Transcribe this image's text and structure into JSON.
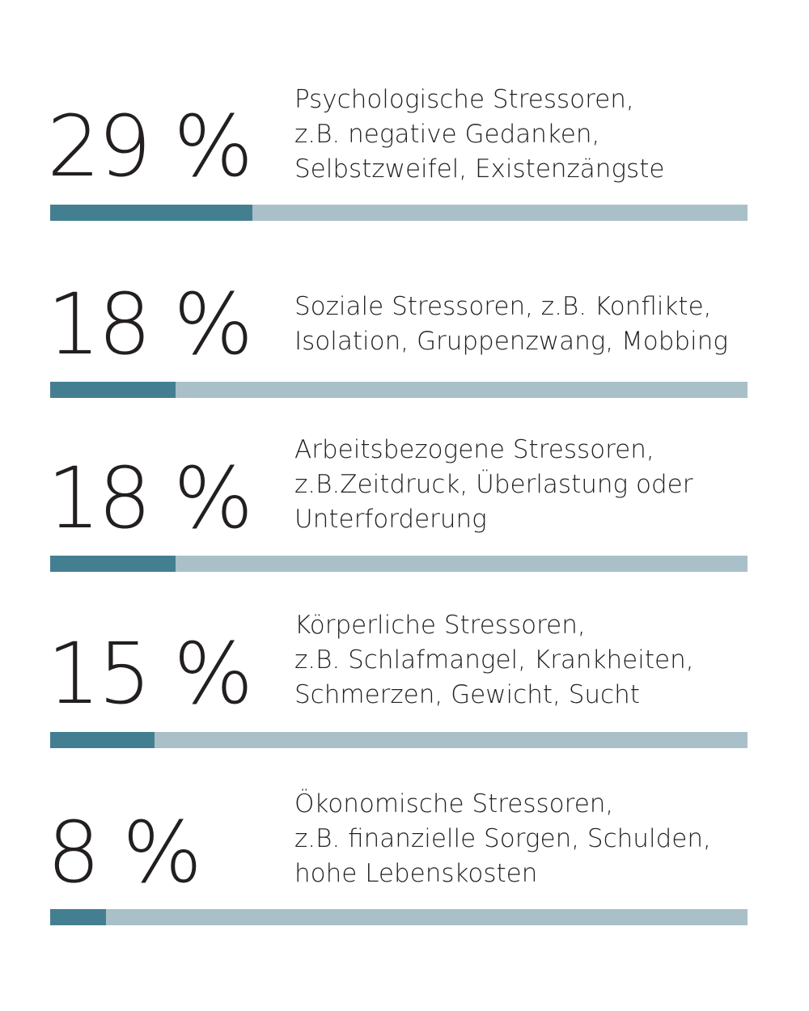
{
  "chart_data": {
    "type": "bar",
    "items": [
      {
        "percent_label": "29 %",
        "value": 29,
        "lines": [
          "Psychologische Stressoren,",
          "z.B. negative Gedanken,",
          "Selbstzweifel, Existenzängste"
        ]
      },
      {
        "percent_label": "18 %",
        "value": 18,
        "lines": [
          "Soziale Stressoren, z.B. Konflikte,",
          "Isolation, Gruppenzwang, Mobbing"
        ]
      },
      {
        "percent_label": "18 %",
        "value": 18,
        "lines": [
          "Arbeitsbezogene Stressoren,",
          "z.B.Zeitdruck, Überlastung oder",
          "Unterforderung"
        ]
      },
      {
        "percent_label": "15 %",
        "value": 15,
        "lines": [
          "Körperliche Stressoren,",
          "z.B. Schlafmangel, Krankheiten,",
          "Schmerzen, Gewicht, Sucht"
        ]
      },
      {
        "percent_label": "8 %",
        "value": 8,
        "lines": [
          "Ökonomische Stressoren,",
          "z.B. finanzielle Sorgen, Schulden,",
          "hohe Lebenskosten"
        ]
      }
    ],
    "max": 100,
    "colors": {
      "fill": "#437f91",
      "track": "#a9c0c8",
      "text": "#231f20"
    }
  }
}
